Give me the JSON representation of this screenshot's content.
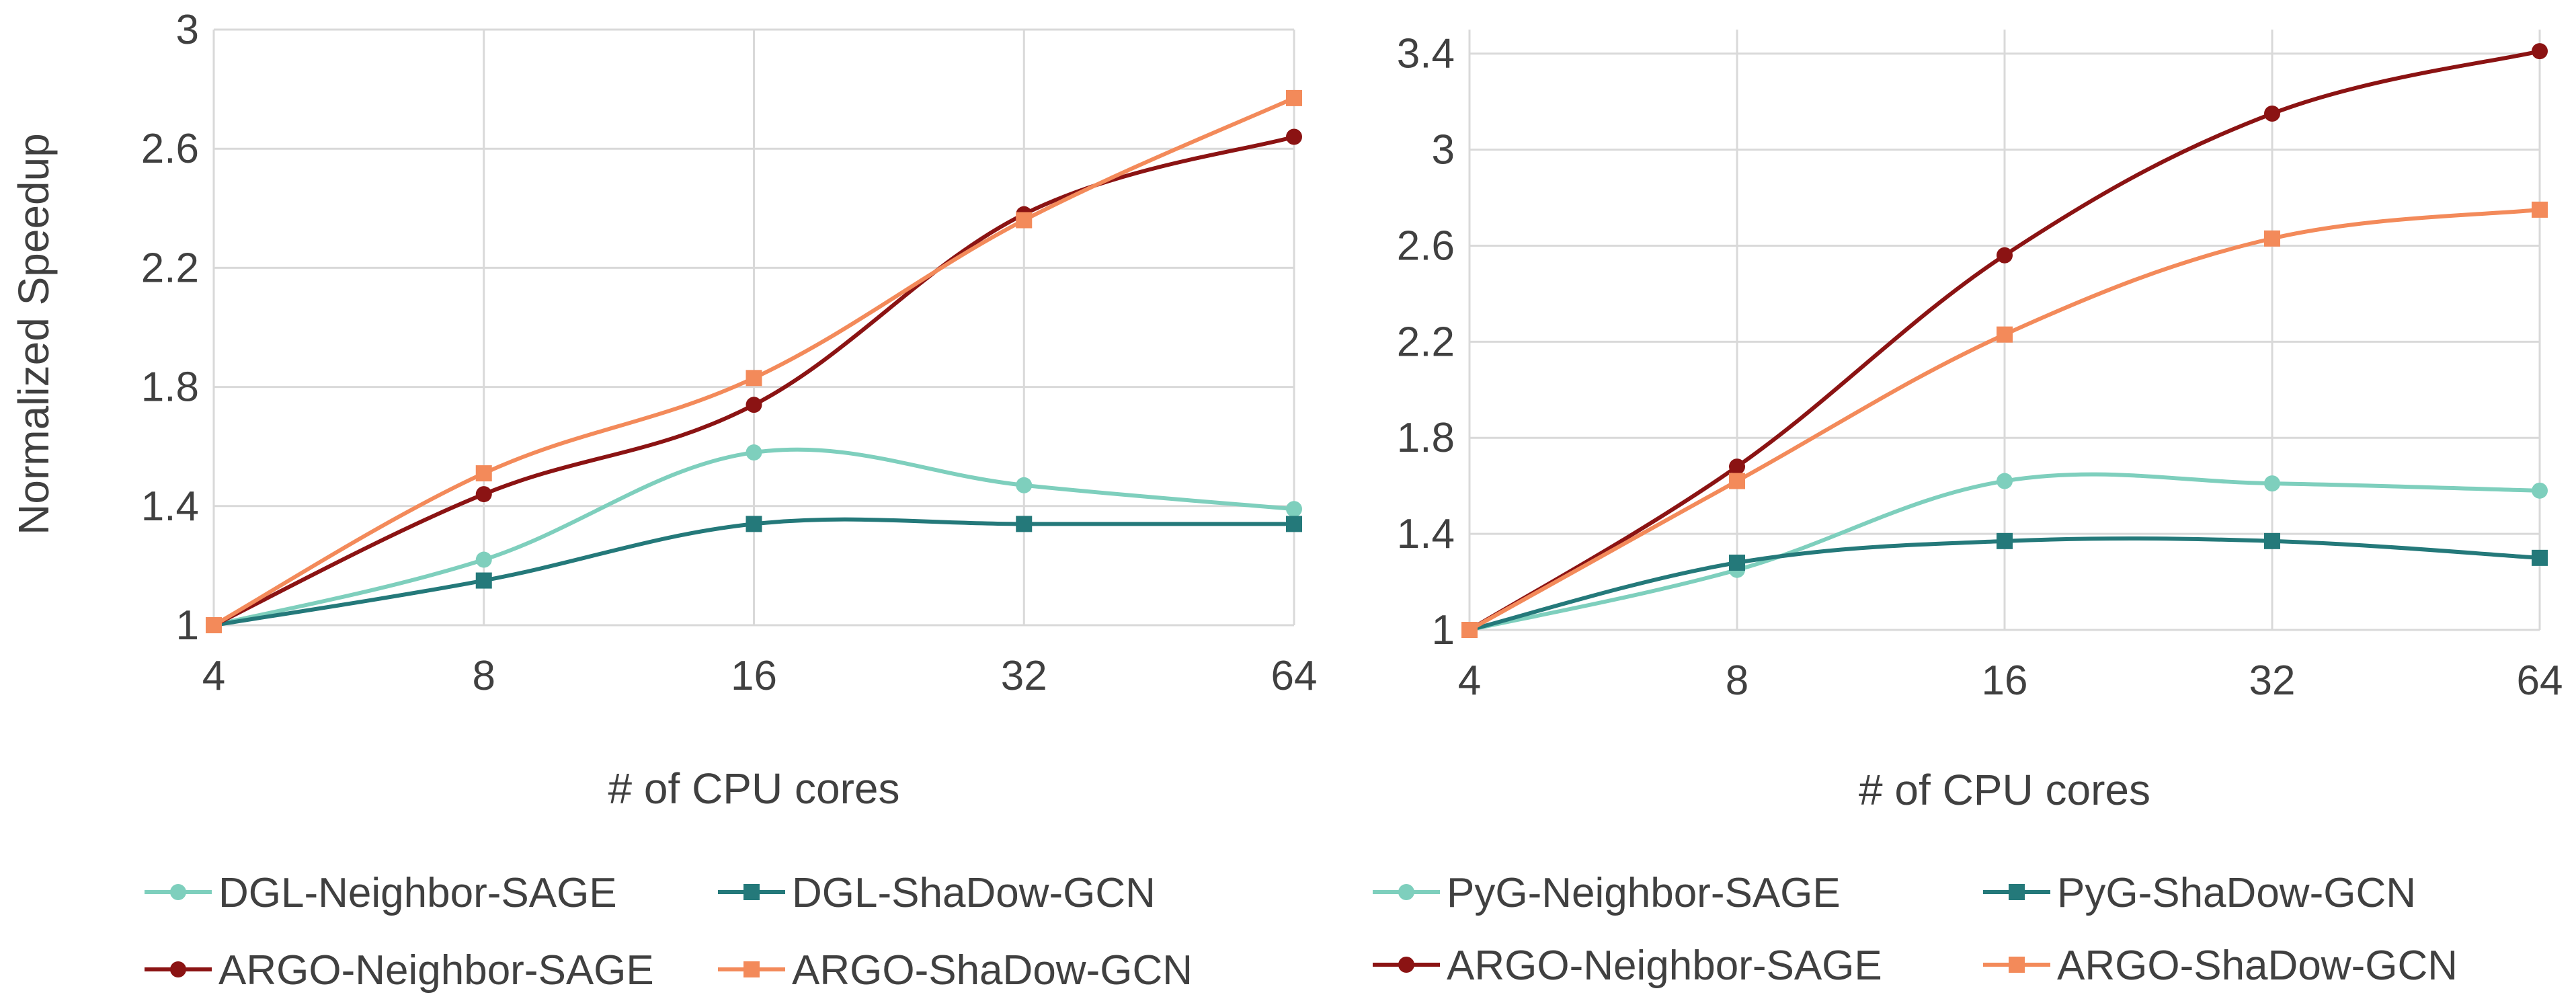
{
  "chart_data": [
    {
      "type": "line",
      "title": "",
      "xlabel": "# of CPU cores",
      "ylabel": "Normalized Speedup",
      "categories": [
        "4",
        "8",
        "16",
        "32",
        "64"
      ],
      "ylim": [
        1,
        3
      ],
      "yticks": [
        "1",
        "1.4",
        "1.8",
        "2.2",
        "2.6",
        "3"
      ],
      "ytick_values": [
        1,
        1.4,
        1.8,
        2.2,
        2.6,
        3
      ],
      "grid": true,
      "legend_position": "bottom",
      "series": [
        {
          "name": "DGL-Neighbor-SAGE",
          "color": "#7ecfbd",
          "marker": "circle",
          "values": [
            1.0,
            1.22,
            1.58,
            1.47,
            1.39
          ]
        },
        {
          "name": "DGL-ShaDow-GCN",
          "color": "#24797a",
          "marker": "square",
          "values": [
            1.0,
            1.15,
            1.34,
            1.34,
            1.34
          ]
        },
        {
          "name": "ARGO-Neighbor-SAGE",
          "color": "#8b1313",
          "marker": "circle",
          "values": [
            1.0,
            1.44,
            1.74,
            2.38,
            2.64
          ]
        },
        {
          "name": "ARGO-ShaDow-GCN",
          "color": "#f38a5a",
          "marker": "square",
          "values": [
            1.0,
            1.51,
            1.83,
            2.36,
            2.77
          ]
        }
      ]
    },
    {
      "type": "line",
      "title": "",
      "xlabel": "# of CPU cores",
      "ylabel": "",
      "categories": [
        "4",
        "8",
        "16",
        "32",
        "64"
      ],
      "ylim": [
        1,
        3.5
      ],
      "yticks": [
        "1",
        "1.4",
        "1.8",
        "2.2",
        "2.6",
        "3",
        "3.4"
      ],
      "ytick_values": [
        1,
        1.4,
        1.8,
        2.2,
        2.6,
        3,
        3.4
      ],
      "grid": true,
      "legend_position": "bottom",
      "series": [
        {
          "name": "PyG-Neighbor-SAGE",
          "color": "#7ecfbd",
          "marker": "circle",
          "values": [
            1.0,
            1.25,
            1.62,
            1.61,
            1.58
          ]
        },
        {
          "name": "PyG-ShaDow-GCN",
          "color": "#24797a",
          "marker": "square",
          "values": [
            1.0,
            1.28,
            1.37,
            1.37,
            1.3
          ]
        },
        {
          "name": "ARGO-Neighbor-SAGE",
          "color": "#8b1313",
          "marker": "circle",
          "values": [
            1.0,
            1.68,
            2.56,
            3.15,
            3.41
          ]
        },
        {
          "name": "ARGO-ShaDow-GCN",
          "color": "#f38a5a",
          "marker": "square",
          "values": [
            1.0,
            1.62,
            2.23,
            2.63,
            2.75
          ]
        }
      ]
    }
  ]
}
